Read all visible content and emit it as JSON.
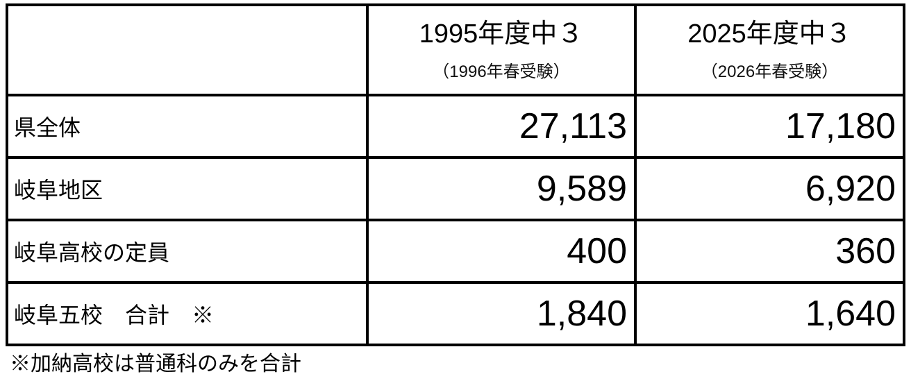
{
  "table": {
    "headers": [
      {
        "line1": "",
        "line2": ""
      },
      {
        "line1": "1995年度中３",
        "line2": "（1996年春受験）"
      },
      {
        "line1": "2025年度中３",
        "line2": "（2026年春受験）"
      }
    ],
    "rows": [
      {
        "label": "県全体",
        "values": [
          "27,113",
          "17,180"
        ]
      },
      {
        "label": "岐阜地区",
        "values": [
          "9,589",
          "6,920"
        ]
      },
      {
        "label": "岐阜高校の定員",
        "values": [
          "400",
          "360"
        ]
      },
      {
        "label": "岐阜五校　合計　※",
        "values": [
          "1,840",
          "1,640"
        ]
      }
    ]
  },
  "footnote": "※加納高校は普通科のみを合計"
}
